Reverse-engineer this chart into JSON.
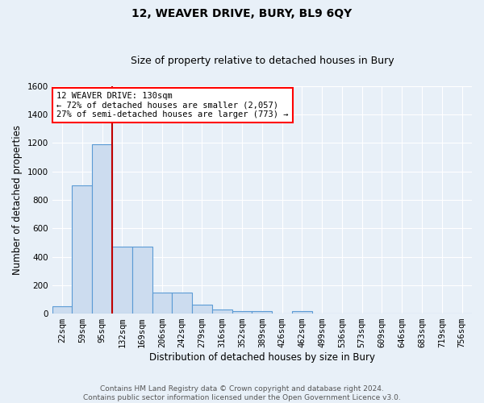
{
  "title": "12, WEAVER DRIVE, BURY, BL9 6QY",
  "subtitle": "Size of property relative to detached houses in Bury",
  "xlabel": "Distribution of detached houses by size in Bury",
  "ylabel": "Number of detached properties",
  "bar_labels": [
    "22sqm",
    "59sqm",
    "95sqm",
    "132sqm",
    "169sqm",
    "206sqm",
    "242sqm",
    "279sqm",
    "316sqm",
    "352sqm",
    "389sqm",
    "426sqm",
    "462sqm",
    "499sqm",
    "536sqm",
    "573sqm",
    "609sqm",
    "646sqm",
    "683sqm",
    "719sqm",
    "756sqm"
  ],
  "bar_values": [
    50,
    900,
    1190,
    470,
    470,
    150,
    150,
    60,
    30,
    20,
    20,
    0,
    20,
    0,
    0,
    0,
    0,
    0,
    0,
    0,
    0
  ],
  "bar_color": "#ccdcef",
  "bar_edge_color": "#5b9bd5",
  "bar_linewidth": 0.8,
  "vline_index": 3,
  "vline_color": "#c00000",
  "vline_linewidth": 1.5,
  "ylim": [
    0,
    1600
  ],
  "yticks": [
    0,
    200,
    400,
    600,
    800,
    1000,
    1200,
    1400,
    1600
  ],
  "annotation_text": "12 WEAVER DRIVE: 130sqm\n← 72% of detached houses are smaller (2,057)\n27% of semi-detached houses are larger (773) →",
  "footer_text": "Contains HM Land Registry data © Crown copyright and database right 2024.\nContains public sector information licensed under the Open Government Licence v3.0.",
  "bg_color": "#e8f0f8",
  "grid_color": "#ffffff",
  "title_fontsize": 10,
  "subtitle_fontsize": 9,
  "axis_label_fontsize": 8.5,
  "tick_fontsize": 7.5,
  "annotation_fontsize": 7.5,
  "footer_fontsize": 6.5
}
